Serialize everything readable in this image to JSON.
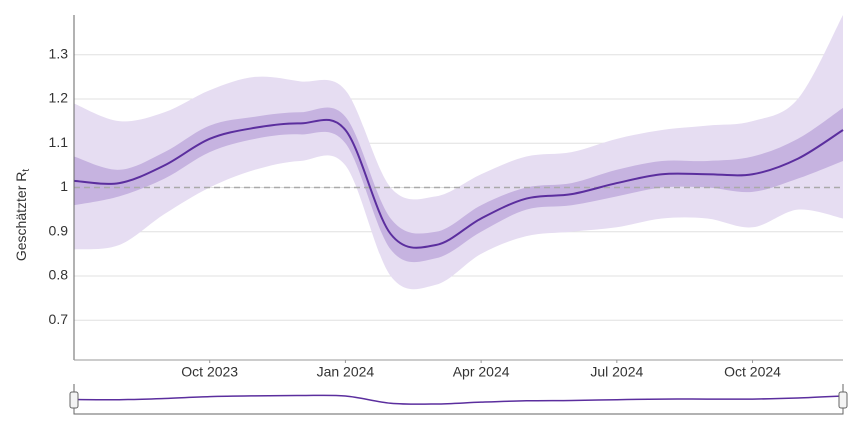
{
  "chart_data": {
    "type": "line",
    "ylabel": "Geschätzter R",
    "ylabel_sub": "t",
    "x": [
      "2023-07",
      "2023-08",
      "2023-09",
      "2023-10",
      "2023-11",
      "2023-12",
      "2024-01",
      "2024-02",
      "2024-03",
      "2024-04",
      "2024-05",
      "2024-06",
      "2024-07",
      "2024-08",
      "2024-09",
      "2024-10",
      "2024-11",
      "2024-12"
    ],
    "values": [
      1.015,
      1.01,
      1.05,
      1.11,
      1.135,
      1.145,
      1.13,
      0.895,
      0.87,
      0.93,
      0.975,
      0.985,
      1.01,
      1.03,
      1.03,
      1.03,
      1.065,
      1.13
    ],
    "inner_low": [
      0.96,
      0.98,
      1.02,
      1.08,
      1.11,
      1.12,
      1.1,
      0.86,
      0.84,
      0.9,
      0.95,
      0.96,
      0.98,
      1.0,
      1.0,
      0.99,
      1.02,
      1.06
    ],
    "inner_high": [
      1.07,
      1.04,
      1.08,
      1.14,
      1.16,
      1.17,
      1.16,
      0.93,
      0.9,
      0.96,
      1.0,
      1.01,
      1.04,
      1.06,
      1.06,
      1.07,
      1.11,
      1.18
    ],
    "outer_low": [
      0.86,
      0.87,
      0.94,
      1.0,
      1.04,
      1.06,
      1.05,
      0.8,
      0.78,
      0.85,
      0.89,
      0.9,
      0.91,
      0.93,
      0.93,
      0.91,
      0.95,
      0.93
    ],
    "outer_high": [
      1.19,
      1.15,
      1.17,
      1.22,
      1.25,
      1.24,
      1.22,
      1.0,
      0.98,
      1.03,
      1.07,
      1.08,
      1.11,
      1.13,
      1.14,
      1.15,
      1.2,
      1.39
    ],
    "color": "#5b2e9e",
    "inner_color": "#c6b3e0",
    "outer_color": "#e6ddf2",
    "refline": 1,
    "xlim": [
      "2023-07",
      "2024-12"
    ],
    "xticks": [
      {
        "value": "2023-10",
        "label": "Oct 2023"
      },
      {
        "value": "2024-01",
        "label": "Jan 2024"
      },
      {
        "value": "2024-04",
        "label": "Apr 2024"
      },
      {
        "value": "2024-07",
        "label": "Jul 2024"
      },
      {
        "value": "2024-10",
        "label": "Oct 2024"
      }
    ],
    "ylim": [
      0.61,
      1.39
    ],
    "yticks": [
      0.7,
      0.8,
      0.9,
      1,
      1.1,
      1.2,
      1.3
    ],
    "grid": true
  }
}
